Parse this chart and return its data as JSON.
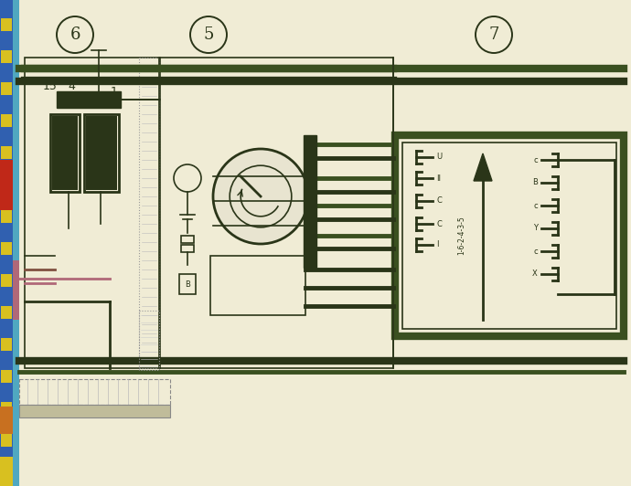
{
  "bg_color": "#f0ecd5",
  "line_color": "#2a3518",
  "wire_green": "#3a5020",
  "colors": {
    "blue": "#3060b0",
    "yellow": "#d8c020",
    "red": "#c02818",
    "pink": "#b06878",
    "cyan": "#50a8c0",
    "orange": "#c87020",
    "brown": "#805040"
  },
  "label6": "6",
  "label5": "5",
  "label7": "7",
  "label15": "15",
  "label4": "4",
  "label1": "1",
  "firing_order": "1-6-2-4-3-5"
}
